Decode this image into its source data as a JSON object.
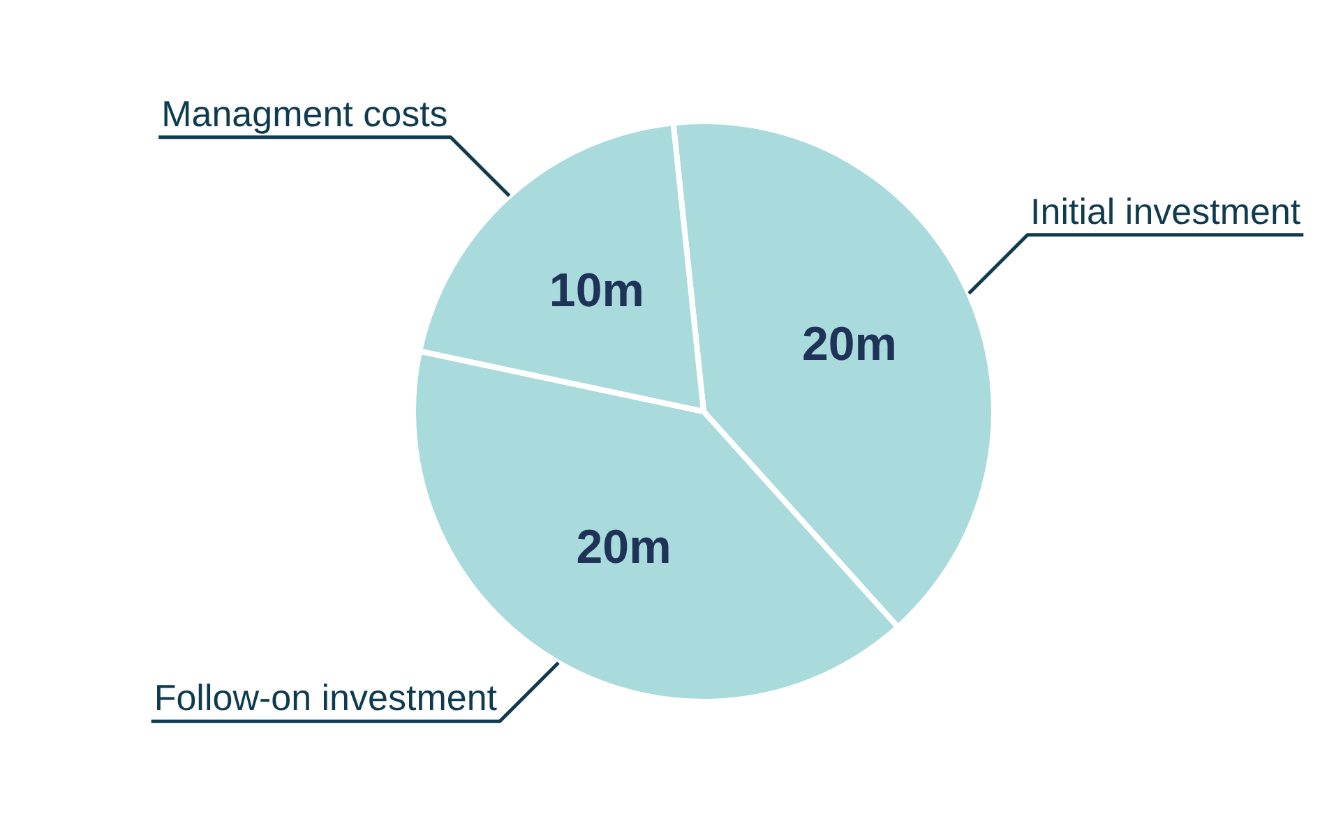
{
  "chart_data": {
    "type": "pie",
    "categories": [
      "Initial investment",
      "Follow-on investment",
      "Managment costs"
    ],
    "values": [
      20,
      20,
      10
    ],
    "colors": [
      "#a9dadc",
      "#a9dadc",
      "#a9dadc"
    ],
    "value_labels": [
      "20m",
      "20m",
      "10m"
    ]
  }
}
